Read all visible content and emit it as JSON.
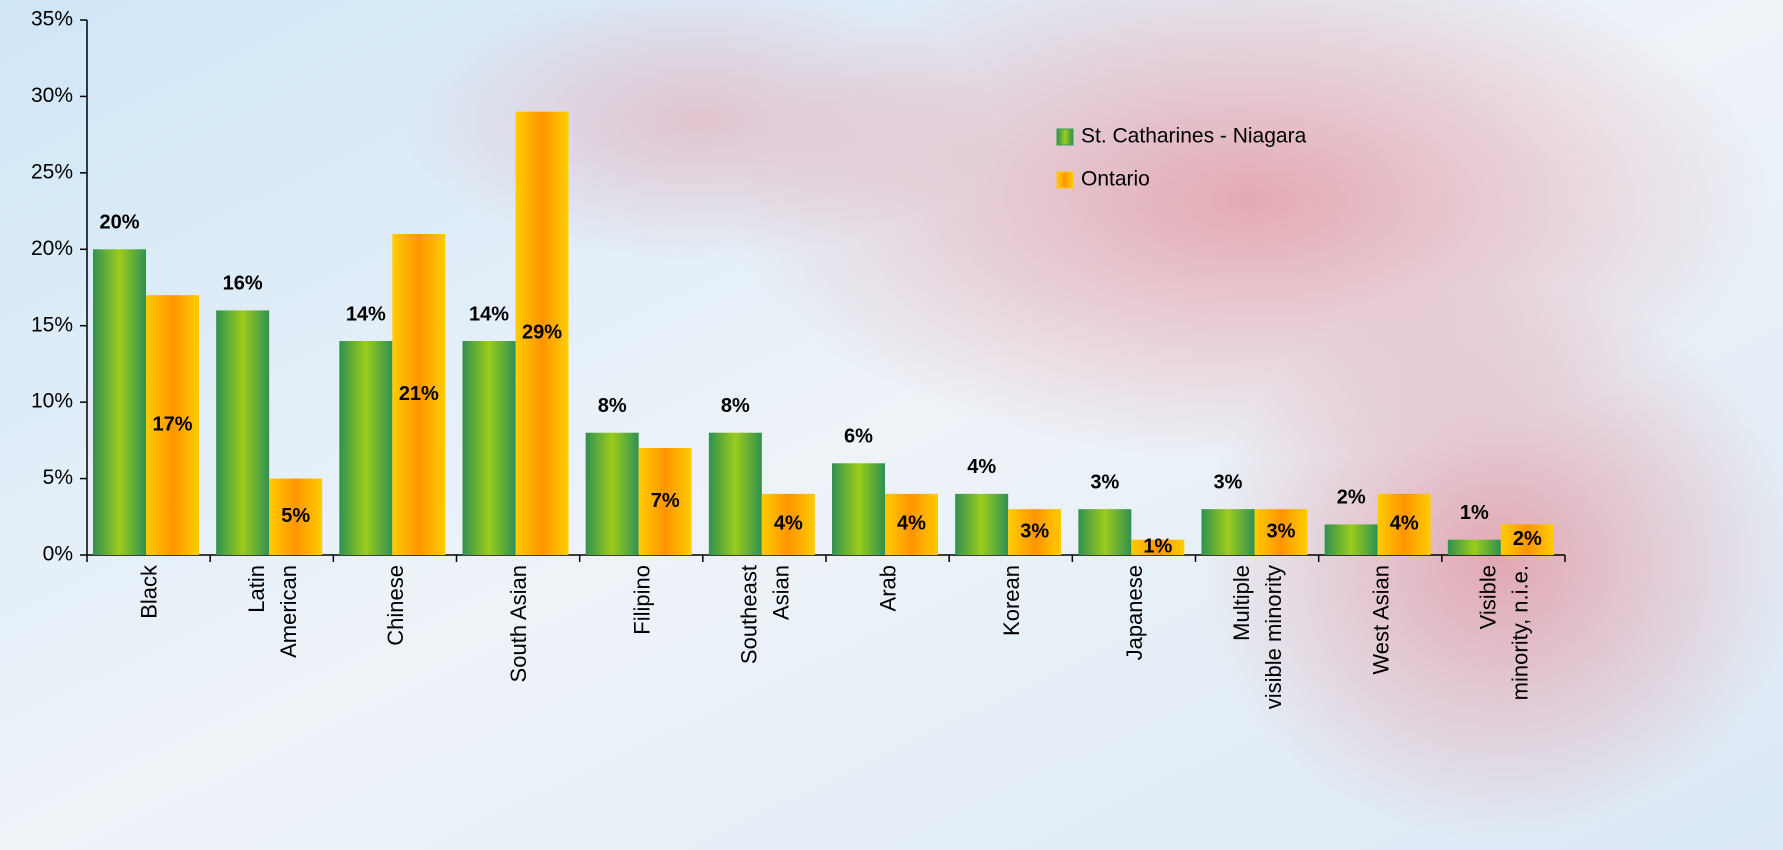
{
  "chart_data": {
    "type": "bar",
    "categories": [
      "Black",
      "Latin\nAmerican",
      "Chinese",
      "South Asian",
      "Filipino",
      "Southeast\nAsian",
      "Arab",
      "Korean",
      "Japanese",
      "Multiple\nvisible minority",
      "West Asian",
      "Visible\nminority, n.i.e."
    ],
    "series": [
      {
        "name": "St. Catharines - Niagara",
        "color": "#3a9a50",
        "values": [
          20,
          16,
          14,
          14,
          8,
          8,
          6,
          4,
          3,
          3,
          2,
          1
        ],
        "value_labels": [
          "20%",
          "16%",
          "14%",
          "14%",
          "8%",
          "8%",
          "6%",
          "4%",
          "3%",
          "3%",
          "2%",
          "1%"
        ]
      },
      {
        "name": "Ontario",
        "color": "#ffc800",
        "values": [
          17,
          5,
          21,
          29,
          7,
          4,
          4,
          3,
          1,
          3,
          4,
          2
        ],
        "value_labels": [
          "17%",
          "5%",
          "21%",
          "29%",
          "7%",
          "4%",
          "4%",
          "3%",
          "1%",
          "3%",
          "4%",
          "2%"
        ]
      }
    ],
    "ylim": [
      0,
      35
    ],
    "yticks": [
      {
        "value": 0,
        "label": "0%"
      },
      {
        "value": 5,
        "label": "5%"
      },
      {
        "value": 10,
        "label": "10%"
      },
      {
        "value": 15,
        "label": "15%"
      },
      {
        "value": 20,
        "label": "20%"
      },
      {
        "value": 25,
        "label": "25%"
      },
      {
        "value": 30,
        "label": "30%"
      },
      {
        "value": 35,
        "label": "35%"
      }
    ],
    "legend": "upper right",
    "grid": false
  }
}
